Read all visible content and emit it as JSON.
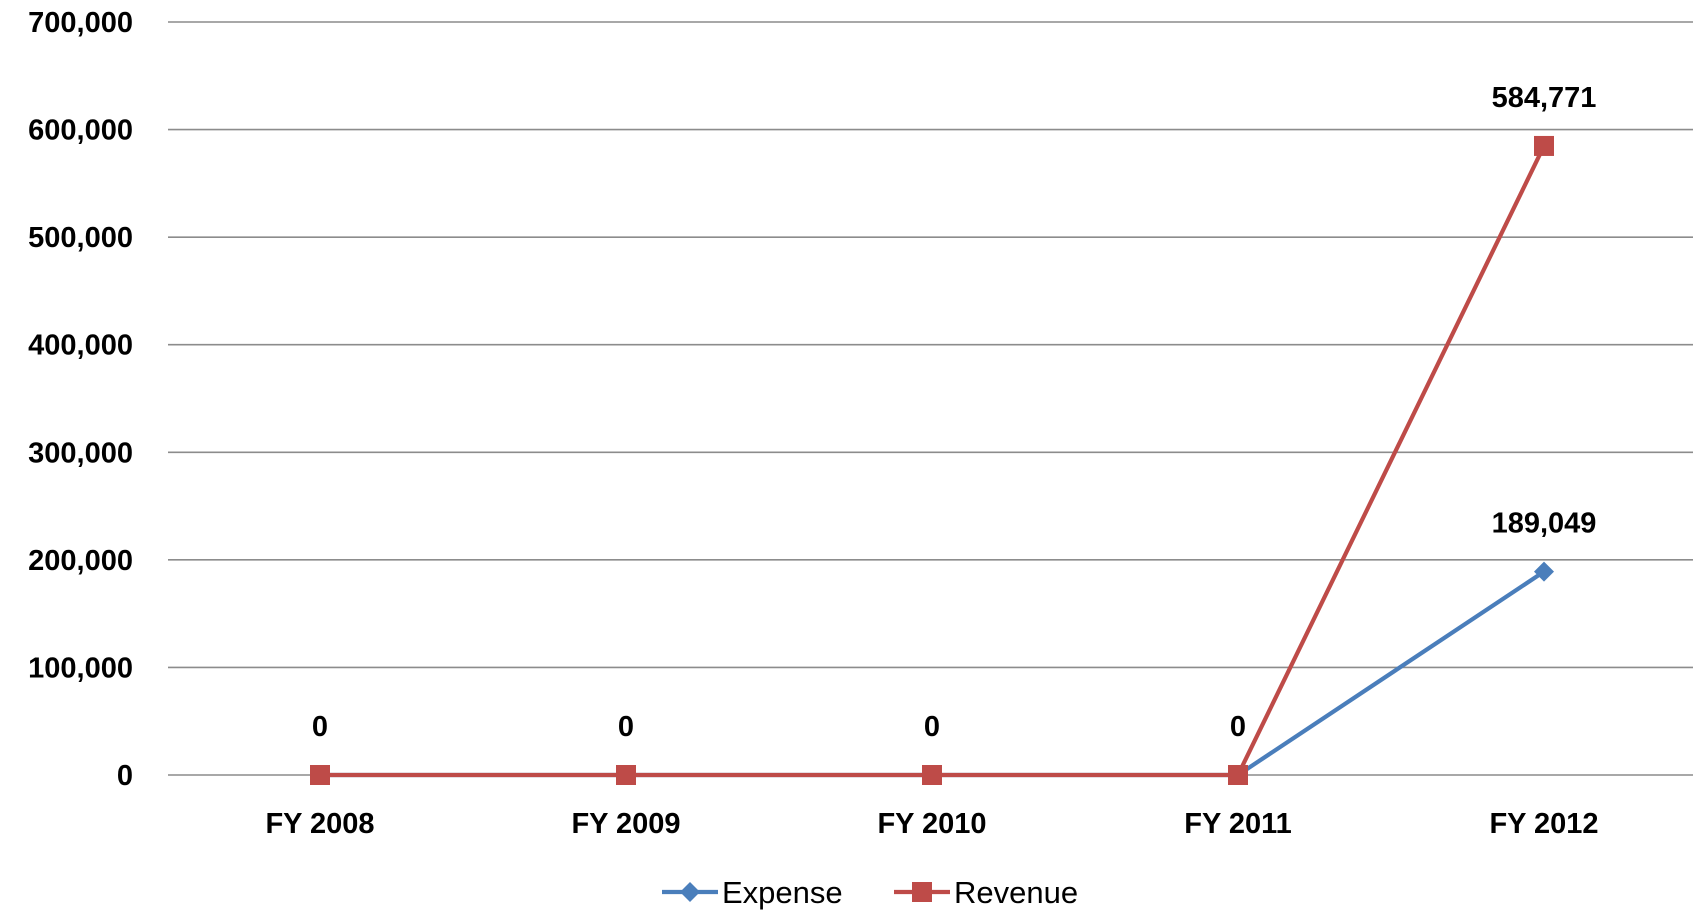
{
  "chart_data": {
    "type": "line",
    "categories": [
      "FY 2008",
      "FY 2009",
      "FY 2010",
      "FY 2011",
      "FY 2012"
    ],
    "series": [
      {
        "name": "Expense",
        "values": [
          0,
          0,
          0,
          0,
          189049
        ],
        "color": "#4a7ebb",
        "marker": "diamond",
        "data_labels": [
          "",
          "",
          "",
          "",
          "189,049"
        ]
      },
      {
        "name": "Revenue",
        "values": [
          0,
          0,
          0,
          0,
          584771
        ],
        "color": "#be4b48",
        "marker": "square",
        "data_labels": [
          "0",
          "0",
          "0",
          "0",
          "584,771"
        ]
      }
    ],
    "ylim": [
      0,
      700000
    ],
    "y_ticks": [
      0,
      100000,
      200000,
      300000,
      400000,
      500000,
      600000,
      700000
    ],
    "y_tick_labels": [
      "0",
      "100,000",
      "200,000",
      "300,000",
      "400,000",
      "500,000",
      "600,000",
      "700,000"
    ],
    "grid": true,
    "legend_position": "bottom"
  }
}
